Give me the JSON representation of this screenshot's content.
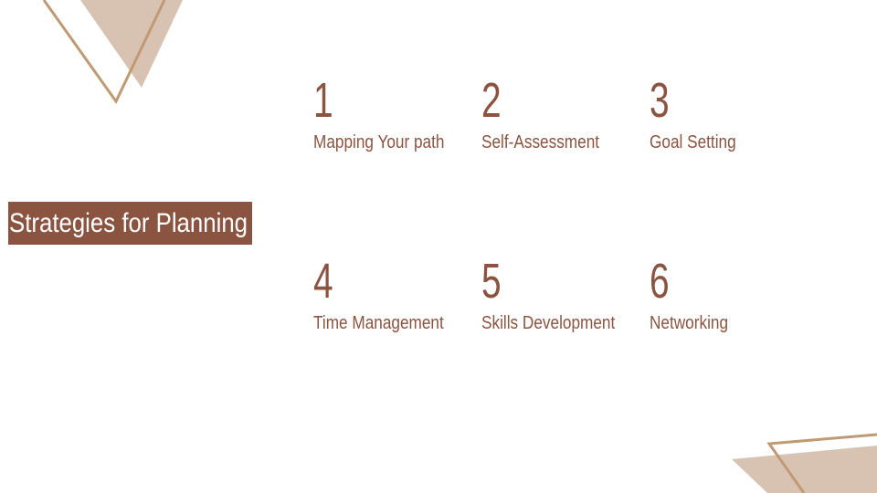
{
  "slide": {
    "title": "Strategies for Planning",
    "items": [
      {
        "number": "1",
        "label": "Mapping Your path"
      },
      {
        "number": "2",
        "label": "Self-Assessment"
      },
      {
        "number": "3",
        "label": "Goal Setting"
      },
      {
        "number": "4",
        "label": "Time Management"
      },
      {
        "number": "5",
        "label": "Skills Development"
      },
      {
        "number": "6",
        "label": "Networking"
      }
    ]
  },
  "colors": {
    "accent_brown": "#8a5440",
    "tan_line": "#bf9a72",
    "tan_fill": "#d8c3b3",
    "background": "#ffffff"
  }
}
